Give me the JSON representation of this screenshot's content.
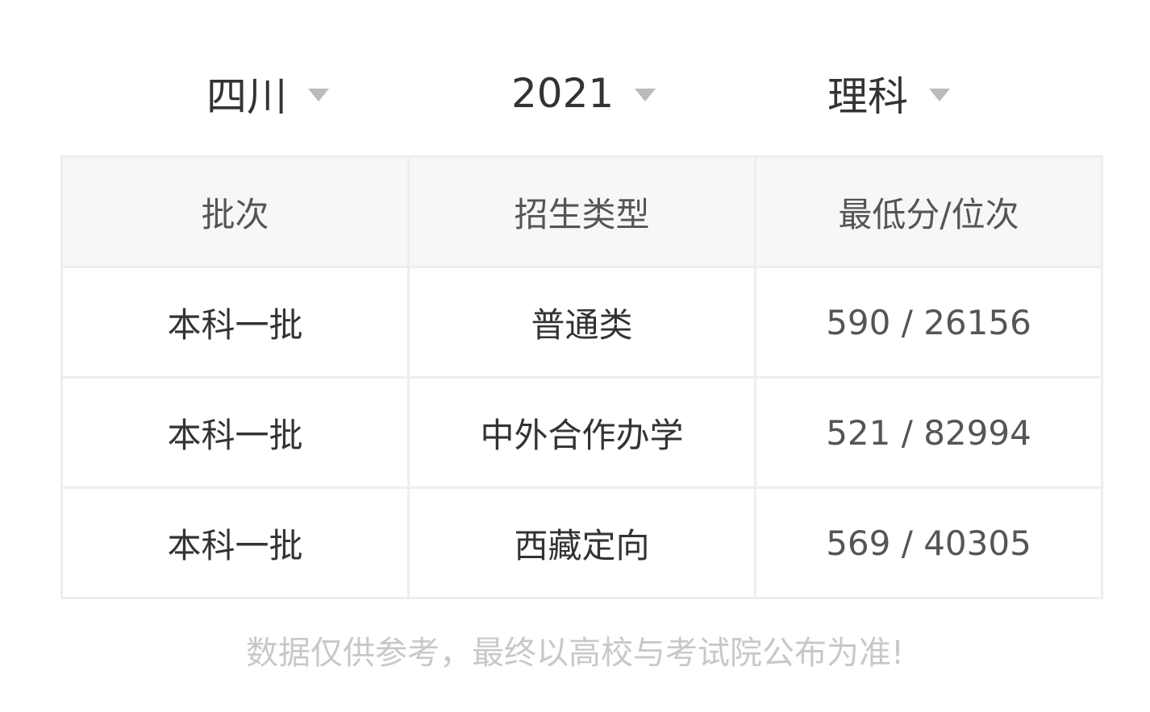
{
  "filters": {
    "province": "四川",
    "year": "2021",
    "subject": "理科"
  },
  "table": {
    "headers": [
      "批次",
      "招生类型",
      "最低分/位次"
    ],
    "rows": [
      [
        "本科一批",
        "普通类",
        "590 / 26156"
      ],
      [
        "本科一批",
        "中外合作办学",
        "521 / 82994"
      ],
      [
        "本科一批",
        "西藏定向",
        "569 / 40305"
      ]
    ]
  },
  "note": "数据仅供参考，最终以高校与考试院公布为准!"
}
